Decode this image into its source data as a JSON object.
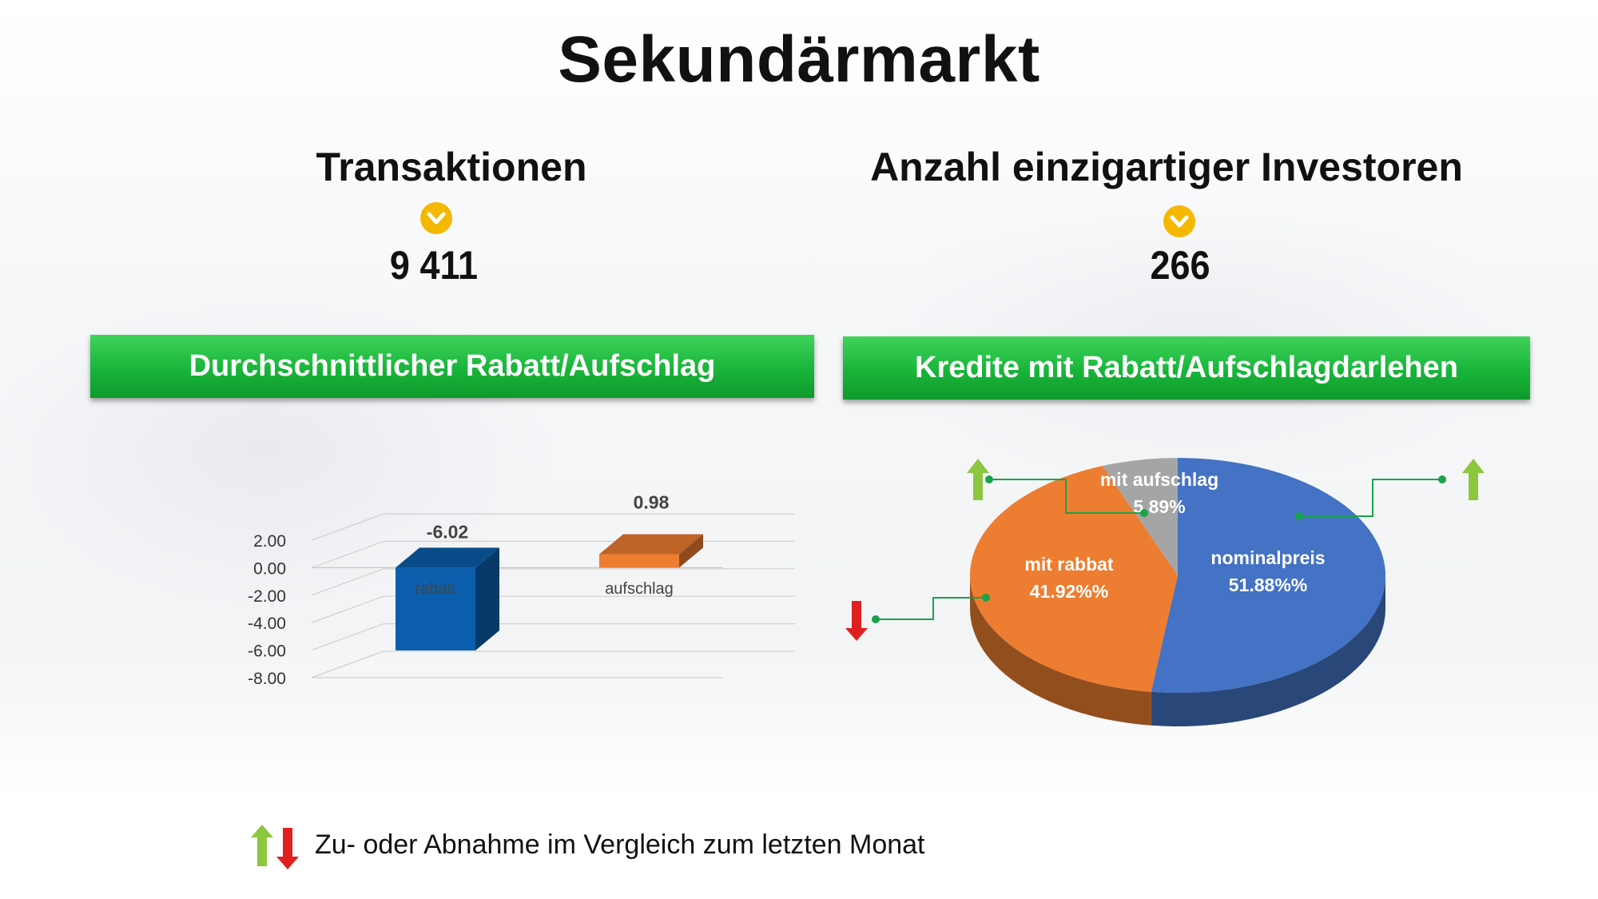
{
  "title": "Sekundärmarkt",
  "kpis": {
    "left": {
      "title": "Transaktionen",
      "value": "9 411",
      "icon": "chevron-down-icon"
    },
    "right": {
      "title": "Anzahl einzigartiger Investoren",
      "value": "266",
      "icon": "chevron-down-icon"
    }
  },
  "sections": {
    "left": "Durchschnittlicher Rabatt/Aufschlag",
    "right": "Kredite mit Rabatt/Aufschlagdarlehen"
  },
  "legend": {
    "text": "Zu- oder Abnahme im Vergleich zum letzten Monat",
    "icon": "up-down-arrows-icon"
  },
  "colors": {
    "green": "#19b43a",
    "yellow": "#f5b800",
    "blue": "#4472c4",
    "orange": "#ed7d31",
    "gray": "#a5a5a5",
    "dark_blue_bar": "#0b5fad",
    "arrow_up": "#8dc63f",
    "arrow_down": "#e02020"
  },
  "chart_data": [
    {
      "type": "bar",
      "categories": [
        "rabatt",
        "aufschlag"
      ],
      "values": [
        -6.02,
        0.98
      ],
      "value_labels": [
        "-6.02",
        "0.98"
      ],
      "y_ticks": [
        "2.00",
        "0.00",
        "-2.00",
        "-4.00",
        "-6.00",
        "-8.00"
      ],
      "ylim": [
        -8,
        2
      ],
      "colors": [
        "#0b5fad",
        "#ed7d31"
      ]
    },
    {
      "type": "pie",
      "slices": [
        {
          "label": "nominalpreis",
          "value_label": "51.88%%",
          "value": 51.88,
          "color": "#4472c4",
          "trend": "up"
        },
        {
          "label": "mit rabbat",
          "value_label": "41.92%%",
          "value": 41.92,
          "color": "#ed7d31",
          "trend": "down"
        },
        {
          "label": "mit aufschlag",
          "value_label": "5.89%",
          "value": 5.89,
          "color": "#a5a5a5",
          "trend": "up"
        }
      ]
    }
  ]
}
